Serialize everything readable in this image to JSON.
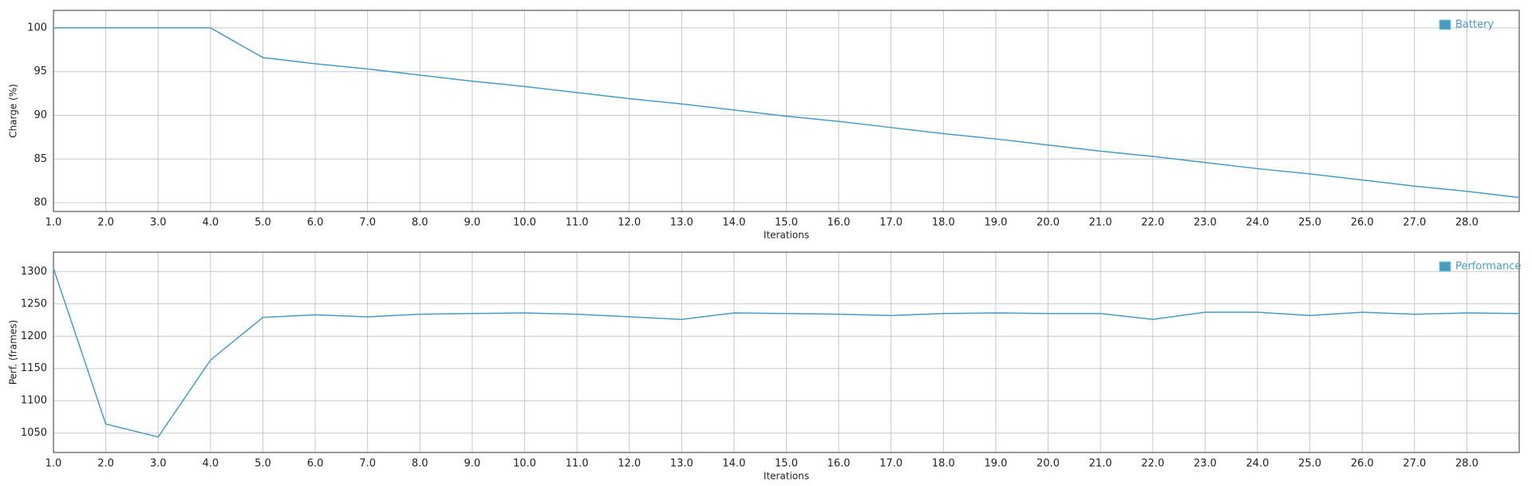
{
  "chart_data": [
    {
      "type": "line",
      "xlabel": "Iterations",
      "ylabel": "Charge (%)",
      "x": [
        1,
        2,
        3,
        4,
        5,
        6,
        7,
        8,
        9,
        10,
        11,
        12,
        13,
        14,
        15,
        16,
        17,
        18,
        19,
        20,
        21,
        22,
        23,
        24,
        25,
        26,
        27,
        28,
        29
      ],
      "series": [
        {
          "name": "Battery",
          "color": "#4a9bc1",
          "values": [
            100,
            100,
            100,
            100,
            96.6,
            95.9,
            95.3,
            94.6,
            93.9,
            93.3,
            92.6,
            91.9,
            91.3,
            90.6,
            89.9,
            89.3,
            88.6,
            87.9,
            87.3,
            86.6,
            85.9,
            85.3,
            84.6,
            83.9,
            83.3,
            82.6,
            81.9,
            81.3,
            80.6
          ]
        }
      ],
      "xlim": [
        1,
        29
      ],
      "xticks": [
        {
          "value": 1,
          "label": "1.0"
        },
        {
          "value": 2,
          "label": "2.0"
        },
        {
          "value": 3,
          "label": "3.0"
        },
        {
          "value": 4,
          "label": "4.0"
        },
        {
          "value": 5,
          "label": "5.0"
        },
        {
          "value": 6,
          "label": "6.0"
        },
        {
          "value": 7,
          "label": "7.0"
        },
        {
          "value": 8,
          "label": "8.0"
        },
        {
          "value": 9,
          "label": "9.0"
        },
        {
          "value": 10,
          "label": "10.0"
        },
        {
          "value": 11,
          "label": "11.0"
        },
        {
          "value": 12,
          "label": "12.0"
        },
        {
          "value": 13,
          "label": "13.0"
        },
        {
          "value": 14,
          "label": "14.0"
        },
        {
          "value": 15,
          "label": "15.0"
        },
        {
          "value": 16,
          "label": "16.0"
        },
        {
          "value": 17,
          "label": "17.0"
        },
        {
          "value": 18,
          "label": "18.0"
        },
        {
          "value": 19,
          "label": "19.0"
        },
        {
          "value": 20,
          "label": "20.0"
        },
        {
          "value": 21,
          "label": "21.0"
        },
        {
          "value": 22,
          "label": "22.0"
        },
        {
          "value": 23,
          "label": "23.0"
        },
        {
          "value": 24,
          "label": "24.0"
        },
        {
          "value": 25,
          "label": "25.0"
        },
        {
          "value": 26,
          "label": "26.0"
        },
        {
          "value": 27,
          "label": "27.0"
        },
        {
          "value": 28,
          "label": "28.0"
        }
      ],
      "ylim": [
        79,
        102
      ],
      "yticks": [
        80,
        85,
        90,
        95,
        100
      ],
      "grid": true,
      "legend": "upper right"
    },
    {
      "type": "line",
      "xlabel": "Iterations",
      "ylabel": "Perf. (frames)",
      "x": [
        1,
        2,
        3,
        4,
        5,
        6,
        7,
        8,
        9,
        10,
        11,
        12,
        13,
        14,
        15,
        16,
        17,
        18,
        19,
        20,
        21,
        22,
        23,
        24,
        25,
        26,
        27,
        28,
        29
      ],
      "series": [
        {
          "name": "Performance",
          "color": "#4a9bc1",
          "values": [
            1305,
            1064,
            1044,
            1163,
            1229,
            1233,
            1230,
            1234,
            1235,
            1236,
            1234,
            1230,
            1226,
            1236,
            1235,
            1234,
            1232,
            1235,
            1236,
            1235,
            1235,
            1226,
            1237,
            1237,
            1232,
            1237,
            1234,
            1236,
            1235
          ]
        }
      ],
      "xlim": [
        1,
        29
      ],
      "xticks": [
        {
          "value": 1,
          "label": "1.0"
        },
        {
          "value": 2,
          "label": "2.0"
        },
        {
          "value": 3,
          "label": "3.0"
        },
        {
          "value": 4,
          "label": "4.0"
        },
        {
          "value": 5,
          "label": "5.0"
        },
        {
          "value": 6,
          "label": "6.0"
        },
        {
          "value": 7,
          "label": "7.0"
        },
        {
          "value": 8,
          "label": "8.0"
        },
        {
          "value": 9,
          "label": "9.0"
        },
        {
          "value": 10,
          "label": "10.0"
        },
        {
          "value": 11,
          "label": "11.0"
        },
        {
          "value": 12,
          "label": "12.0"
        },
        {
          "value": 13,
          "label": "13.0"
        },
        {
          "value": 14,
          "label": "14.0"
        },
        {
          "value": 15,
          "label": "15.0"
        },
        {
          "value": 16,
          "label": "16.0"
        },
        {
          "value": 17,
          "label": "17.0"
        },
        {
          "value": 18,
          "label": "18.0"
        },
        {
          "value": 19,
          "label": "19.0"
        },
        {
          "value": 20,
          "label": "20.0"
        },
        {
          "value": 21,
          "label": "21.0"
        },
        {
          "value": 22,
          "label": "22.0"
        },
        {
          "value": 23,
          "label": "23.0"
        },
        {
          "value": 24,
          "label": "24.0"
        },
        {
          "value": 25,
          "label": "25.0"
        },
        {
          "value": 26,
          "label": "26.0"
        },
        {
          "value": 27,
          "label": "27.0"
        },
        {
          "value": 28,
          "label": "28.0"
        }
      ],
      "ylim": [
        1020,
        1330
      ],
      "yticks": [
        1050,
        1100,
        1150,
        1200,
        1250,
        1300
      ],
      "grid": true,
      "legend": "upper right"
    }
  ]
}
